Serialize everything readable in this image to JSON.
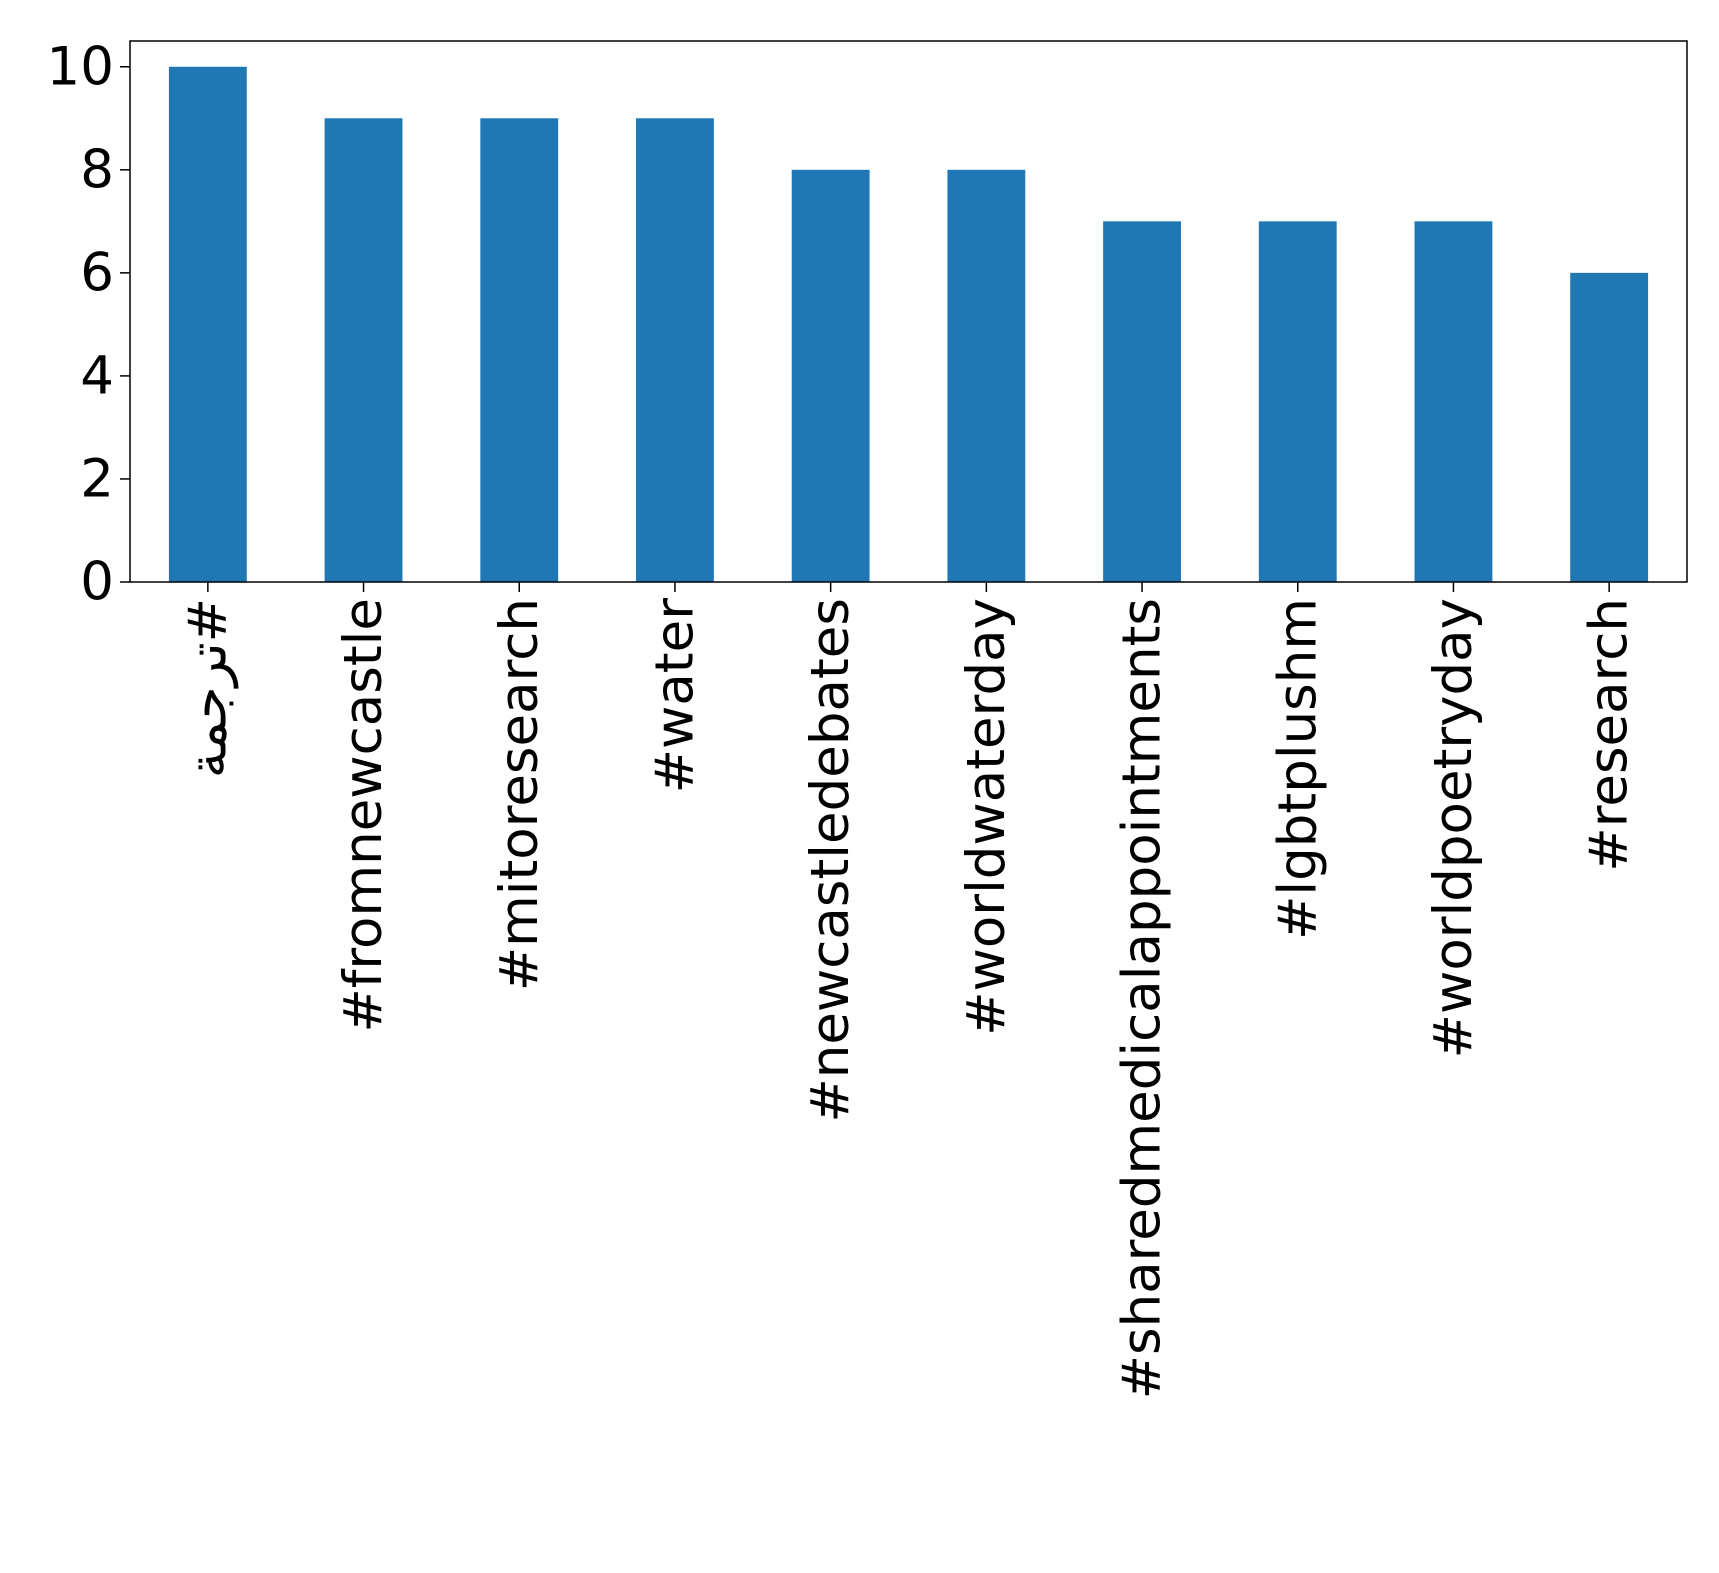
{
  "chart_data": {
    "type": "bar",
    "categories": [
      "#ترجمة",
      "#fromnewcastle",
      "#mitoresearch",
      "#water",
      "#newcastledebates",
      "#worldwaterday",
      "#sharedmedicalappointments",
      "#lgbtplushm",
      "#worldpoetryday",
      "#research"
    ],
    "values": [
      10,
      9,
      9,
      9,
      8,
      8,
      7,
      7,
      7,
      6
    ],
    "color": "#1f77b4",
    "ylim": [
      0,
      10.5
    ],
    "yticks": [
      0,
      2,
      4,
      6,
      8,
      10
    ],
    "grid": false
  }
}
